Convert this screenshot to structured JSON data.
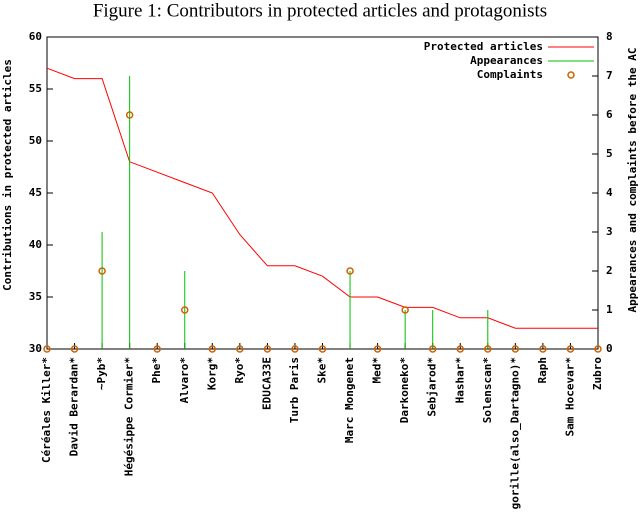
{
  "chart_data": {
    "type": "line",
    "title": "Figure 1: Contributors in protected articles and protagonists",
    "y_label": "Contributions in protected articles",
    "y2_label": "Appearances and complaints before the AC",
    "categories": [
      "Céréales Killer*",
      "David Berardan*",
      "~Pyb*",
      "Hégésippe Cormier*",
      "Phe*",
      "Alvaro*",
      "Korg*",
      "Ryo*",
      "EDUCA33E",
      "Turb Paris",
      "Ske*",
      "Marc Mongenet",
      "Med*",
      "Darkoneko*",
      "Sebjarod*",
      "Hashar*",
      "Solenscan*",
      "Le gorille(also_Dartagno)*",
      "Raph",
      "Sam Hocevar*",
      "Zubro"
    ],
    "series": [
      {
        "name": "Protected articles",
        "color": "#ff0000",
        "style": "line",
        "values": [
          57,
          56,
          56,
          48,
          47,
          46,
          45,
          41,
          38,
          38,
          37,
          35,
          35,
          34,
          34,
          33,
          33,
          32,
          32,
          32,
          32
        ]
      },
      {
        "name": "Appearances",
        "color": "#00c000",
        "style": "impulses",
        "axis": "y2",
        "values": [
          0,
          0,
          3,
          7,
          0,
          2,
          0,
          0,
          0,
          0,
          0,
          2,
          0,
          1,
          1,
          0,
          1,
          0,
          0,
          0,
          0
        ]
      },
      {
        "name": "Complaints",
        "color": "#d06000",
        "style": "points",
        "axis": "y2",
        "values": [
          0,
          0,
          2,
          6,
          0,
          1,
          0,
          0,
          0,
          0,
          0,
          2,
          0,
          1,
          0,
          0,
          0,
          0,
          0,
          0,
          0
        ]
      }
    ],
    "ylim": [
      30,
      60
    ],
    "yticks": [
      30,
      35,
      40,
      45,
      50,
      55,
      60
    ],
    "y2lim": [
      0,
      8
    ],
    "y2ticks": [
      0,
      1,
      2,
      3,
      4,
      5,
      6,
      7,
      8
    ],
    "legend": "top-right"
  }
}
